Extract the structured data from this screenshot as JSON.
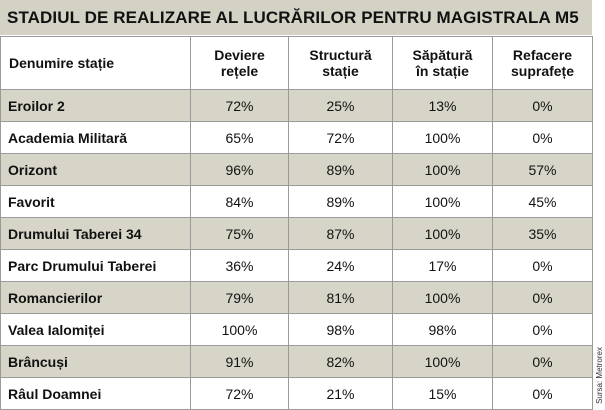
{
  "title": "STADIUL DE REALIZARE AL LUCRĂRILOR PENTRU MAGISTRALA M5",
  "columns": [
    "Denumire stație",
    "Deviere\nrețele",
    "Structură\nstație",
    "Săpătură\nîn stație",
    "Refacere\nsuprafețe"
  ],
  "rows": [
    [
      "Eroilor 2",
      "72%",
      "25%",
      "13%",
      "0%"
    ],
    [
      "Academia Militară",
      "65%",
      "72%",
      "100%",
      "0%"
    ],
    [
      "Orizont",
      "96%",
      "89%",
      "100%",
      "57%"
    ],
    [
      "Favorit",
      "84%",
      "89%",
      "100%",
      "45%"
    ],
    [
      "Drumului Taberei 34",
      "75%",
      "87%",
      "100%",
      "35%"
    ],
    [
      "Parc Drumului Taberei",
      "36%",
      "24%",
      "17%",
      "0%"
    ],
    [
      "Romancierilor",
      "79%",
      "81%",
      "100%",
      "0%"
    ],
    [
      "Valea Ialomiței",
      "100%",
      "98%",
      "98%",
      "0%"
    ],
    [
      "Brâncuși",
      "91%",
      "82%",
      "100%",
      "0%"
    ],
    [
      "Râul Doamnei",
      "72%",
      "21%",
      "15%",
      "0%"
    ]
  ],
  "source": "Sursa: Metrorex",
  "colors": {
    "shade": "#d7d5c7",
    "border": "#9a9a9a"
  }
}
